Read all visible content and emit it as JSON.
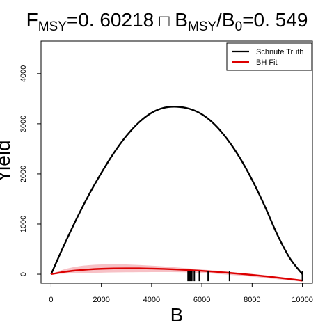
{
  "chart_data": {
    "type": "line",
    "title": {
      "f_letter": "F",
      "f_sub": "MSY",
      "f_value": "=0. 60218 ",
      "missing_glyph": "□",
      "b_letter": " B",
      "b_sub": "MSY",
      "slash_b": "/B",
      "b0_sub": "0",
      "ratio_value": "=0. 549"
    },
    "xlabel": "B",
    "ylabel": "Yield",
    "xlim": [
      -400,
      10400
    ],
    "ylim": [
      -180,
      4650
    ],
    "xticks": [
      0,
      2000,
      4000,
      6000,
      8000,
      10000
    ],
    "xtick_labels": [
      "0",
      "2000",
      "4000",
      "6000",
      "8000",
      "10000"
    ],
    "yticks": [
      0,
      1000,
      2000,
      3000,
      4000
    ],
    "ytick_labels": [
      "0",
      "1000",
      "2000",
      "3000",
      "4000"
    ],
    "legend_position": "top-right",
    "grid": false,
    "series": [
      {
        "name": "Schnute Truth",
        "color": "#000000",
        "x": [
          0,
          500,
          1000,
          1500,
          2000,
          2500,
          3000,
          3500,
          4000,
          4500,
          5000,
          5500,
          6000,
          6500,
          7000,
          7500,
          8000,
          8500,
          9000,
          9500,
          10000
        ],
        "y": [
          0,
          560,
          1090,
          1580,
          2020,
          2420,
          2760,
          3030,
          3220,
          3320,
          3340,
          3300,
          3190,
          2990,
          2700,
          2330,
          1880,
          1360,
          790,
          320,
          0
        ]
      },
      {
        "name": "BH Fit",
        "color": "#dd0000",
        "x": [
          0,
          500,
          1000,
          1500,
          2000,
          2500,
          3000,
          3500,
          4000,
          4500,
          5000,
          5500,
          6000,
          6500,
          7000,
          7500,
          8000,
          8500,
          9000,
          9500,
          10000
        ],
        "y": [
          0,
          45,
          75,
          95,
          108,
          115,
          118,
          117,
          112,
          105,
          95,
          82,
          67,
          50,
          30,
          8,
          -15,
          -40,
          -68,
          -97,
          -128
        ]
      }
    ],
    "confidence_band": {
      "color": "#f7c1c6",
      "x": [
        0,
        500,
        1000,
        1500,
        2000,
        2500,
        3000,
        3500,
        4000,
        4500,
        5000,
        5500,
        6000,
        6500,
        7000,
        7500,
        8000,
        8500,
        9000,
        9500,
        10000
      ],
      "upper": [
        0,
        95,
        150,
        180,
        195,
        200,
        195,
        185,
        170,
        155,
        135,
        115,
        95,
        75,
        52,
        28,
        5,
        -20,
        -48,
        -80,
        -115
      ],
      "lower": [
        0,
        10,
        18,
        25,
        30,
        35,
        38,
        40,
        42,
        42,
        40,
        35,
        25,
        10,
        -8,
        -28,
        -50,
        -75,
        -100,
        -125,
        -150
      ]
    },
    "rug_x": [
      5450,
      5500,
      5550,
      5600,
      5700,
      5900,
      6250,
      7100,
      10000
    ]
  }
}
